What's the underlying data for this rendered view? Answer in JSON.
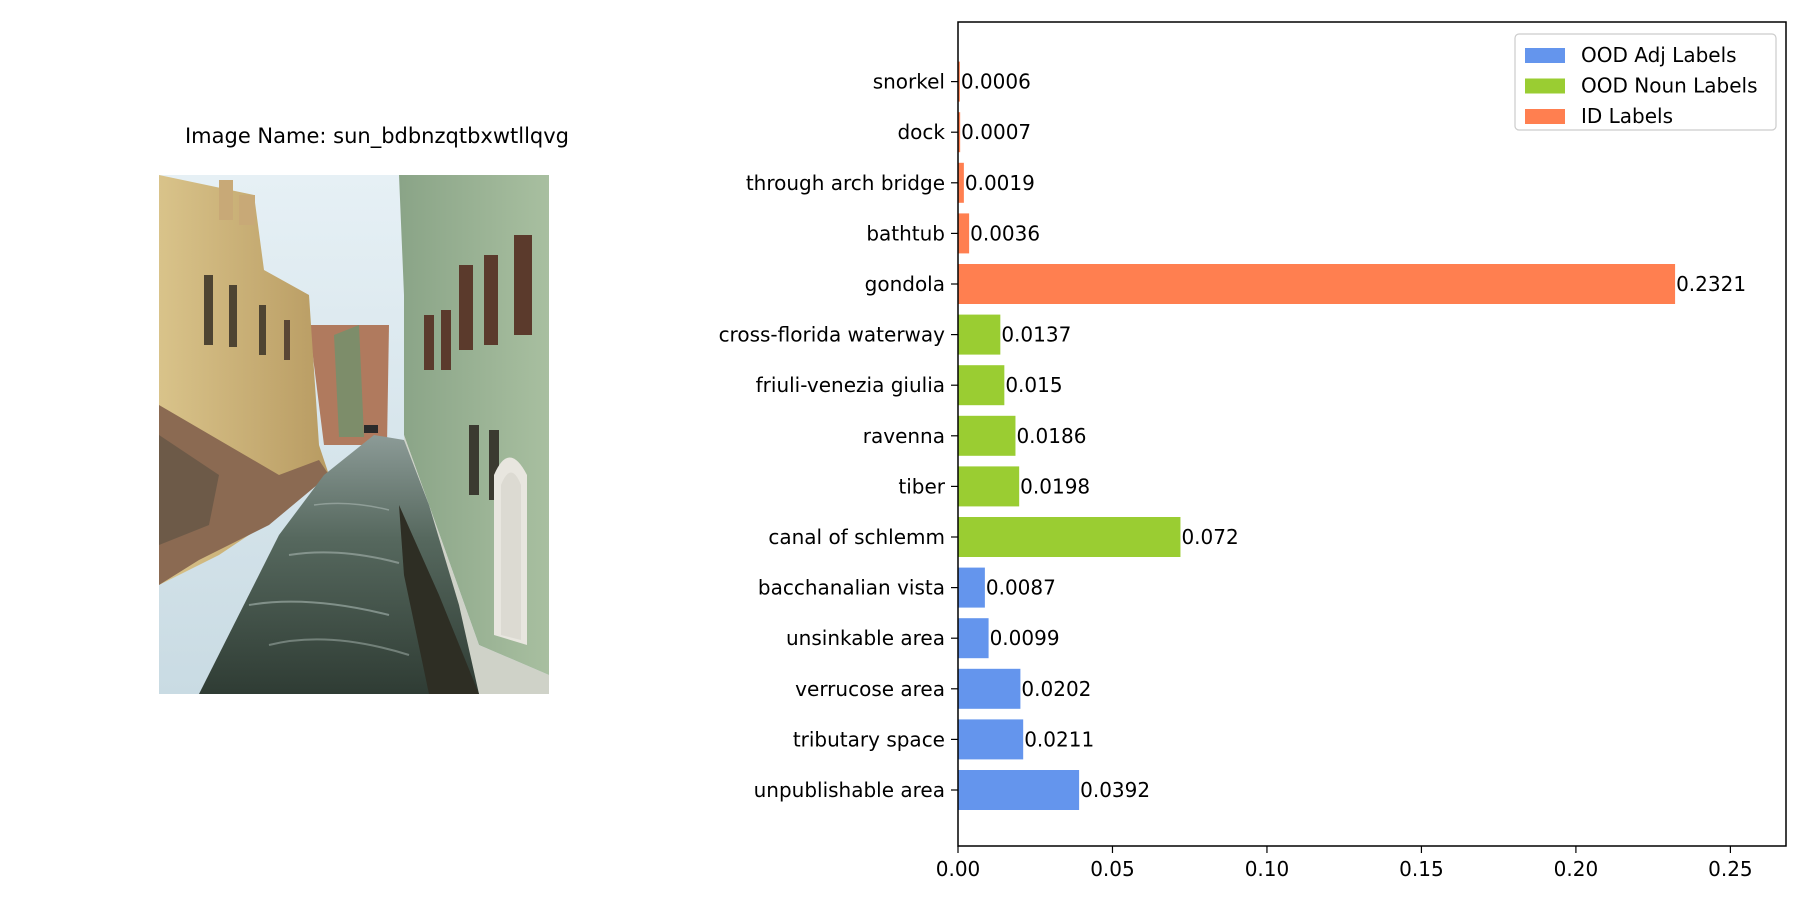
{
  "image_panel": {
    "title": "Image Name: sun_bdbnzqtbxwtllqvg",
    "photo_icon": "venice-canal-photo"
  },
  "chart_data": {
    "type": "bar",
    "orientation": "horizontal",
    "categories": [
      "unpublishable area",
      "tributary space",
      "verrucose area",
      "unsinkable area",
      "bacchanalian vista",
      "canal of schlemm",
      "tiber",
      "ravenna",
      "friuli-venezia giulia",
      "cross-florida waterway",
      "gondola",
      "bathtub",
      "through arch bridge",
      "dock",
      "snorkel"
    ],
    "values": [
      0.0392,
      0.0211,
      0.0202,
      0.0099,
      0.0087,
      0.072,
      0.0198,
      0.0186,
      0.015,
      0.0137,
      0.2321,
      0.0036,
      0.0019,
      0.0007,
      0.0006
    ],
    "value_labels": [
      "0.0392",
      "0.0211",
      "0.0202",
      "0.0099",
      "0.0087",
      "0.072",
      "0.0198",
      "0.0186",
      "0.015",
      "0.0137",
      "0.2321",
      "0.0036",
      "0.0019",
      "0.0007",
      "0.0006"
    ],
    "groups": [
      0,
      0,
      0,
      0,
      0,
      1,
      1,
      1,
      1,
      1,
      2,
      2,
      2,
      2,
      2
    ],
    "series": [
      {
        "name": "OOD Adj Labels",
        "color": "#6495ED"
      },
      {
        "name": "OOD Noun Labels",
        "color": "#9ACD32"
      },
      {
        "name": "ID Labels",
        "color": "#FF7F50"
      }
    ],
    "xlim": [
      0,
      0.268
    ],
    "xticks": [
      0.0,
      0.05,
      0.1,
      0.15,
      0.2,
      0.25
    ],
    "xtick_labels": [
      "0.00",
      "0.05",
      "0.10",
      "0.15",
      "0.20",
      "0.25"
    ],
    "title": "",
    "xlabel": "",
    "ylabel": "",
    "grid": false,
    "legend_position": "top-right"
  }
}
